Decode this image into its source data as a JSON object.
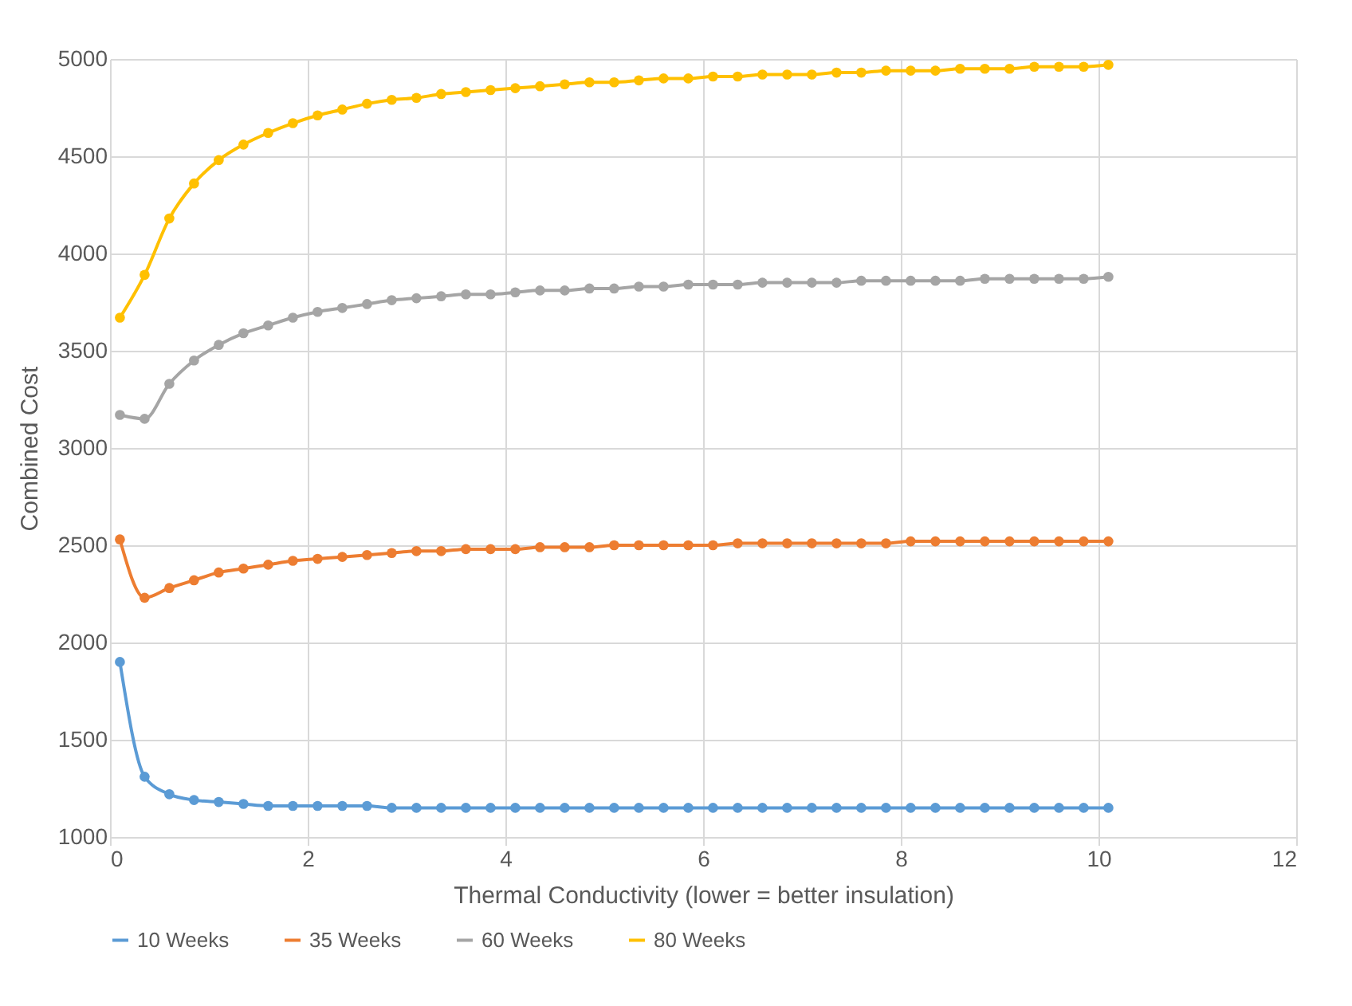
{
  "chart_data": {
    "type": "line",
    "xlabel": "Thermal Conductivity (lower = better insulation)",
    "ylabel": "Combined Cost",
    "x": [
      0.1,
      0.35,
      0.6,
      0.85,
      1.1,
      1.35,
      1.6,
      1.85,
      2.1,
      2.35,
      2.6,
      2.85,
      3.1,
      3.35,
      3.6,
      3.85,
      4.1,
      4.35,
      4.6,
      4.85,
      5.1,
      5.35,
      5.6,
      5.85,
      6.1,
      6.35,
      6.6,
      6.85,
      7.1,
      7.35,
      7.6,
      7.85,
      8.1,
      8.35,
      8.6,
      8.85,
      9.1,
      9.35,
      9.6,
      9.85,
      10.1
    ],
    "series": [
      {
        "name": "10 Weeks",
        "color": "#5b9bd5",
        "values": [
          1900,
          1310,
          1220,
          1190,
          1180,
          1170,
          1160,
          1160,
          1160,
          1160,
          1160,
          1150,
          1150,
          1150,
          1150,
          1150,
          1150,
          1150,
          1150,
          1150,
          1150,
          1150,
          1150,
          1150,
          1150,
          1150,
          1150,
          1150,
          1150,
          1150,
          1150,
          1150,
          1150,
          1150,
          1150,
          1150,
          1150,
          1150,
          1150,
          1150,
          1150
        ]
      },
      {
        "name": "35 Weeks",
        "color": "#ed7d31",
        "values": [
          2530,
          2230,
          2280,
          2320,
          2360,
          2380,
          2400,
          2420,
          2430,
          2440,
          2450,
          2460,
          2470,
          2470,
          2480,
          2480,
          2480,
          2490,
          2490,
          2490,
          2500,
          2500,
          2500,
          2500,
          2500,
          2510,
          2510,
          2510,
          2510,
          2510,
          2510,
          2510,
          2520,
          2520,
          2520,
          2520,
          2520,
          2520,
          2520,
          2520,
          2520
        ]
      },
      {
        "name": "60 Weeks",
        "color": "#a5a5a5",
        "values": [
          3170,
          3150,
          3330,
          3450,
          3530,
          3590,
          3630,
          3670,
          3700,
          3720,
          3740,
          3760,
          3770,
          3780,
          3790,
          3790,
          3800,
          3810,
          3810,
          3820,
          3820,
          3830,
          3830,
          3840,
          3840,
          3840,
          3850,
          3850,
          3850,
          3850,
          3860,
          3860,
          3860,
          3860,
          3860,
          3870,
          3870,
          3870,
          3870,
          3870,
          3880
        ]
      },
      {
        "name": "80 Weeks",
        "color": "#ffc000",
        "values": [
          3670,
          3890,
          4180,
          4360,
          4480,
          4560,
          4620,
          4670,
          4710,
          4740,
          4770,
          4790,
          4800,
          4820,
          4830,
          4840,
          4850,
          4860,
          4870,
          4880,
          4880,
          4890,
          4900,
          4900,
          4910,
          4910,
          4920,
          4920,
          4920,
          4930,
          4930,
          4940,
          4940,
          4940,
          4950,
          4950,
          4950,
          4960,
          4960,
          4960,
          4970
        ]
      }
    ],
    "xlim": [
      0,
      12
    ],
    "xticks": [
      0,
      2,
      4,
      6,
      8,
      10,
      12
    ],
    "ylim": [
      1000,
      5000
    ],
    "yticks": [
      1000,
      1500,
      2000,
      2500,
      3000,
      3500,
      4000,
      4500,
      5000
    ],
    "grid": true,
    "legend": "bottom",
    "marker": "circle",
    "line_style": "solid"
  }
}
